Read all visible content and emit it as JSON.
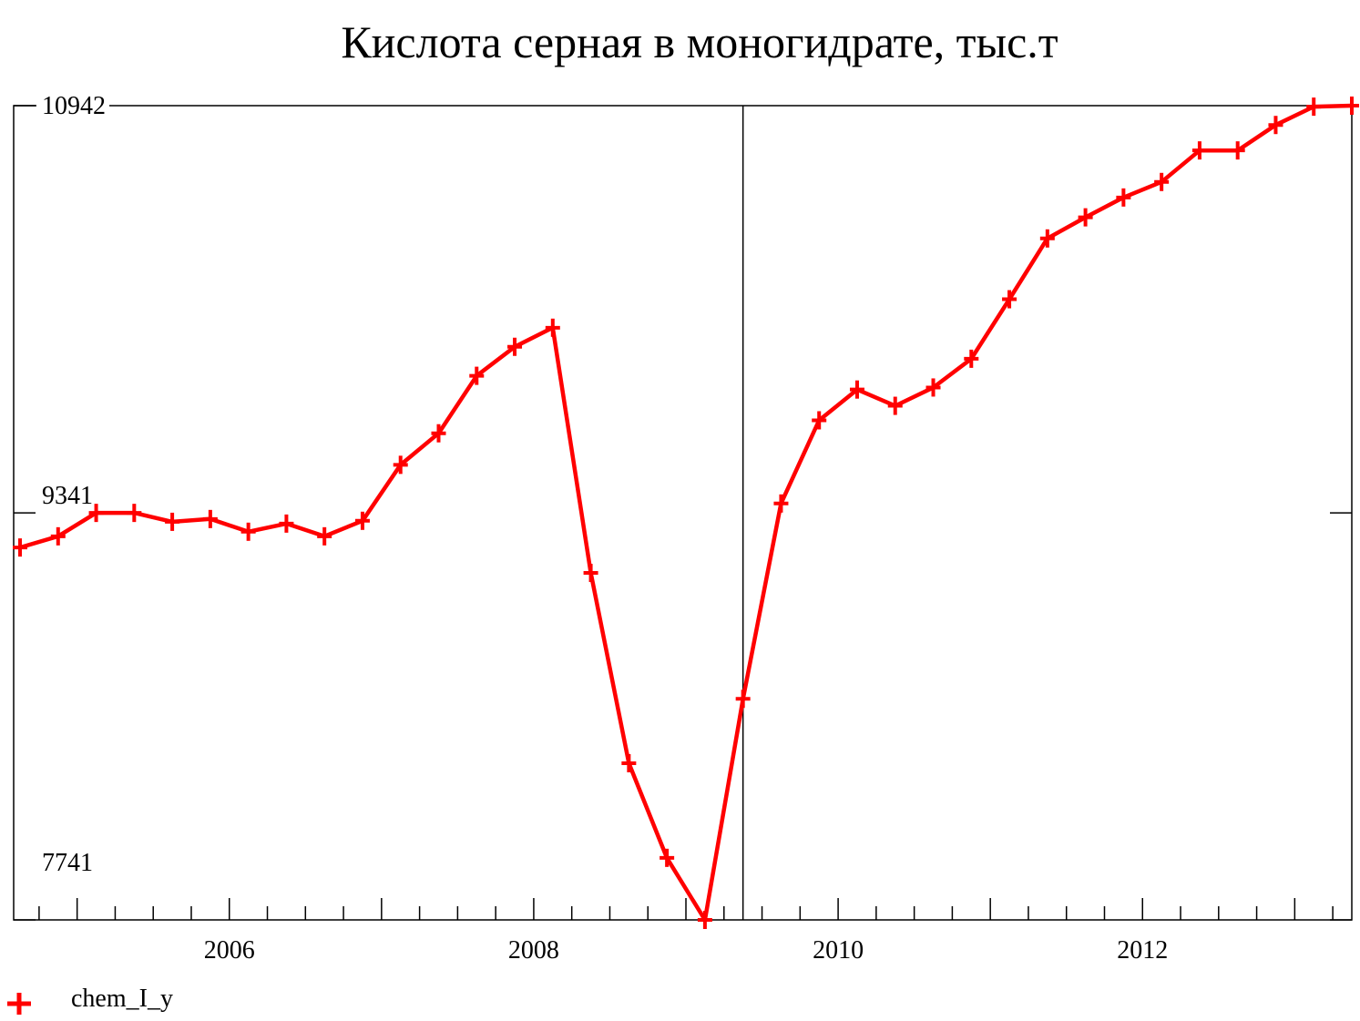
{
  "chart_data": {
    "type": "line",
    "title": "Кислота серная в моногидрате, тыс.т",
    "xlabel": "",
    "ylabel": "",
    "xlim": [
      2004.583,
      2013.375
    ],
    "ylim": [
      7741,
      10942
    ],
    "y_ticks": [
      {
        "value": 10942,
        "label": "10942"
      },
      {
        "value": 9341,
        "label": "9341"
      },
      {
        "value": 7741,
        "label": "7741"
      }
    ],
    "x_ticks": [
      {
        "value": 2006,
        "label": "2006"
      },
      {
        "value": 2008,
        "label": "2008"
      },
      {
        "value": 2010,
        "label": "2010"
      },
      {
        "value": 2012,
        "label": "2012"
      }
    ],
    "divider_x": 2009.375,
    "grid": false,
    "legend": {
      "position": "bottom-left"
    },
    "colors": {
      "series": "#ff0000",
      "axis": "#000000"
    },
    "series": [
      {
        "name": "chem_I_y",
        "marker": "plus",
        "x": [
          2004.625,
          2004.875,
          2005.125,
          2005.375,
          2005.625,
          2005.875,
          2006.125,
          2006.375,
          2006.625,
          2006.875,
          2007.125,
          2007.375,
          2007.625,
          2007.875,
          2008.125,
          2008.375,
          2008.625,
          2008.875,
          2009.125,
          2009.375,
          2009.625,
          2009.875,
          2010.125,
          2010.375,
          2010.625,
          2010.875,
          2011.125,
          2011.375,
          2011.625,
          2011.875,
          2012.125,
          2012.375,
          2012.625,
          2012.875,
          2013.125,
          2013.375
        ],
        "values": [
          9205,
          9249,
          9341,
          9341,
          9306,
          9317,
          9267,
          9299,
          9249,
          9310,
          9530,
          9654,
          9880,
          9994,
          10069,
          9105,
          8357,
          7985,
          7741,
          8610,
          9378,
          9705,
          9826,
          9762,
          9834,
          9947,
          10181,
          10420,
          10503,
          10581,
          10642,
          10766,
          10766,
          10866,
          10938,
          10942
        ]
      }
    ]
  }
}
